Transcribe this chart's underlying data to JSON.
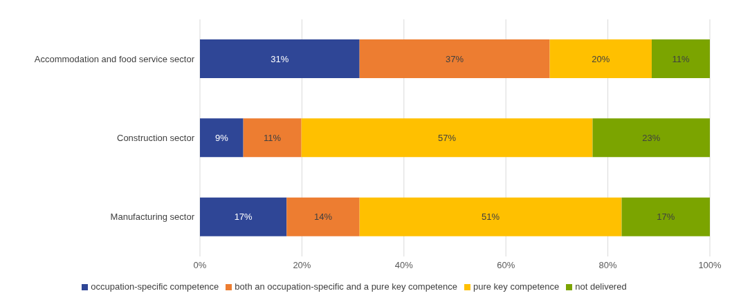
{
  "chart_data": {
    "type": "bar",
    "orientation": "horizontal",
    "stacked": true,
    "categories": [
      "Accommodation and food service sector",
      "Construction sector",
      "Manufacturing sector"
    ],
    "series": [
      {
        "name": "occupation-specific competence",
        "color": "#2f4696",
        "values": [
          31.3,
          8.5,
          17.0
        ],
        "value_labels": [
          "31%",
          "9%",
          "17%"
        ]
      },
      {
        "name": "both an occupation-specific and a pure key competence",
        "color": "#ed7d31",
        "values": [
          37.3,
          11.4,
          14.3
        ],
        "value_labels": [
          "37%",
          "11%",
          "14%"
        ]
      },
      {
        "name": "pure key competence",
        "color": "#ffc000",
        "values": [
          20.0,
          57.1,
          51.4
        ],
        "value_labels": [
          "20%",
          "57%",
          "51%"
        ]
      },
      {
        "name": "not delivered",
        "color": "#7ba400",
        "values": [
          11.4,
          23.0,
          17.3
        ],
        "value_labels": [
          "11%",
          "23%",
          "17%"
        ]
      }
    ],
    "xlim": [
      0,
      100
    ],
    "xticks": [
      {
        "value": 0,
        "label": "0%"
      },
      {
        "value": 20,
        "label": "20%"
      },
      {
        "value": 40,
        "label": "40%"
      },
      {
        "value": 60,
        "label": "60%"
      },
      {
        "value": 80,
        "label": "80%"
      },
      {
        "value": 100,
        "label": "100%"
      }
    ],
    "grid": "x",
    "legend": "bottom"
  }
}
